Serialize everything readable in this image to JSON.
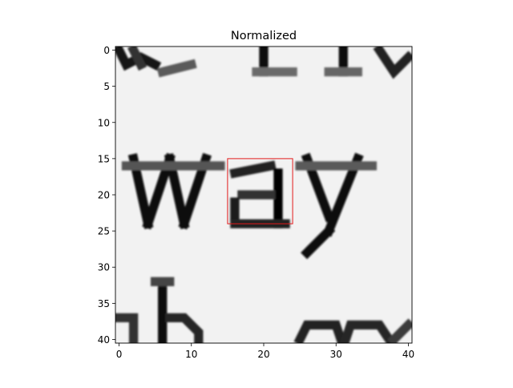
{
  "chart_data": {
    "type": "heatmap",
    "title": "Normalized",
    "xlabel": "",
    "ylabel": "",
    "xlim": [
      -0.5,
      40.5
    ],
    "ylim": [
      40.5,
      -0.5
    ],
    "xticks": [
      0,
      10,
      20,
      30,
      40
    ],
    "yticks": [
      0,
      5,
      10,
      15,
      20,
      25,
      30,
      35,
      40
    ],
    "grid": false,
    "colormap": "gray",
    "image_size": [
      41,
      41
    ],
    "glyph_strokes": [
      {
        "glyph": "top-left-fragment",
        "color": "#141414",
        "points": [
          [
            0,
            0
          ],
          [
            1,
            2
          ],
          [
            3,
            1
          ],
          [
            5,
            2
          ]
        ]
      },
      {
        "glyph": "top-left-fragment-2",
        "color": "#303030",
        "points": [
          [
            2,
            0
          ],
          [
            3,
            2
          ]
        ]
      },
      {
        "glyph": "top-left-tail",
        "color": "#5a5a5a",
        "points": [
          [
            6,
            3
          ],
          [
            10,
            2
          ]
        ]
      },
      {
        "glyph": "top-mid-stem",
        "color": "#0d0d0d",
        "points": [
          [
            20,
            0
          ],
          [
            20,
            3
          ]
        ]
      },
      {
        "glyph": "top-mid-base",
        "color": "#6a6a6a",
        "points": [
          [
            19,
            3
          ],
          [
            24,
            3
          ]
        ]
      },
      {
        "glyph": "top-right-stem",
        "color": "#111111",
        "points": [
          [
            31,
            0
          ],
          [
            31,
            3
          ]
        ]
      },
      {
        "glyph": "top-right-base",
        "color": "#666666",
        "points": [
          [
            29,
            3
          ],
          [
            33,
            3
          ]
        ]
      },
      {
        "glyph": "top-right-fragment",
        "color": "#222222",
        "points": [
          [
            36,
            0
          ],
          [
            38,
            3
          ],
          [
            40,
            1
          ]
        ]
      },
      {
        "glyph": "w-left-outer",
        "color": "#0a0a0a",
        "points": [
          [
            2,
            15
          ],
          [
            4,
            24
          ]
        ]
      },
      {
        "glyph": "w-left-inner",
        "color": "#0f0f0f",
        "points": [
          [
            7,
            15
          ],
          [
            4,
            24
          ]
        ]
      },
      {
        "glyph": "w-right-outer",
        "color": "#0a0a0a",
        "points": [
          [
            7,
            15
          ],
          [
            9,
            24
          ]
        ]
      },
      {
        "glyph": "w-right-inner",
        "color": "#0f0f0f",
        "points": [
          [
            12,
            15
          ],
          [
            9,
            24
          ]
        ]
      },
      {
        "glyph": "w-serifs",
        "color": "#555555",
        "points": [
          [
            1,
            16
          ],
          [
            14,
            16
          ]
        ]
      },
      {
        "glyph": "a-top",
        "color": "#222222",
        "points": [
          [
            16,
            17
          ],
          [
            21,
            16
          ]
        ]
      },
      {
        "glyph": "a-stem",
        "color": "#050505",
        "points": [
          [
            22,
            17
          ],
          [
            22,
            24
          ]
        ]
      },
      {
        "glyph": "a-bowl-top",
        "color": "#333333",
        "points": [
          [
            17,
            20
          ],
          [
            21,
            20
          ]
        ]
      },
      {
        "glyph": "a-bowl-left",
        "color": "#1a1a1a",
        "points": [
          [
            16,
            21
          ],
          [
            16,
            23
          ]
        ]
      },
      {
        "glyph": "a-bowl-bottom",
        "color": "#202020",
        "points": [
          [
            16,
            24
          ],
          [
            23,
            24
          ]
        ]
      },
      {
        "glyph": "y-left",
        "color": "#0b0b0b",
        "points": [
          [
            26,
            15
          ],
          [
            29,
            23
          ]
        ]
      },
      {
        "glyph": "y-right",
        "color": "#0b0b0b",
        "points": [
          [
            33,
            15
          ],
          [
            29,
            25
          ]
        ]
      },
      {
        "glyph": "y-tail",
        "color": "#0a0a0a",
        "points": [
          [
            29,
            25
          ],
          [
            26,
            28
          ]
        ]
      },
      {
        "glyph": "y-serifs",
        "color": "#5a5a5a",
        "points": [
          [
            25,
            16
          ],
          [
            35,
            16
          ]
        ]
      },
      {
        "glyph": "h-stem",
        "color": "#070707",
        "points": [
          [
            6,
            33
          ],
          [
            6,
            41
          ]
        ]
      },
      {
        "glyph": "h-top",
        "color": "#444444",
        "points": [
          [
            5,
            32
          ],
          [
            7,
            32
          ]
        ]
      },
      {
        "glyph": "h-arch",
        "color": "#262626",
        "points": [
          [
            7,
            37
          ],
          [
            9,
            37
          ],
          [
            11,
            39
          ],
          [
            11,
            41
          ]
        ]
      },
      {
        "glyph": "left-edge-fragment",
        "color": "#333333",
        "points": [
          [
            0,
            37
          ],
          [
            2,
            37
          ],
          [
            2,
            40
          ]
        ]
      },
      {
        "glyph": "m-arch-1",
        "color": "#222222",
        "points": [
          [
            25,
            40
          ],
          [
            26,
            38
          ],
          [
            30,
            38
          ],
          [
            31,
            41
          ]
        ]
      },
      {
        "glyph": "m-arch-2",
        "color": "#262626",
        "points": [
          [
            31,
            41
          ],
          [
            32,
            38
          ],
          [
            36,
            38
          ],
          [
            38,
            41
          ]
        ]
      },
      {
        "glyph": "m-arch-3",
        "color": "#3a3a3a",
        "points": [
          [
            38,
            40
          ],
          [
            40,
            38
          ]
        ]
      }
    ],
    "annotations": [
      {
        "type": "rectangle",
        "color": "#e31a1c",
        "x0": 15,
        "y0": 15,
        "x1": 24,
        "y1": 24
      }
    ]
  }
}
